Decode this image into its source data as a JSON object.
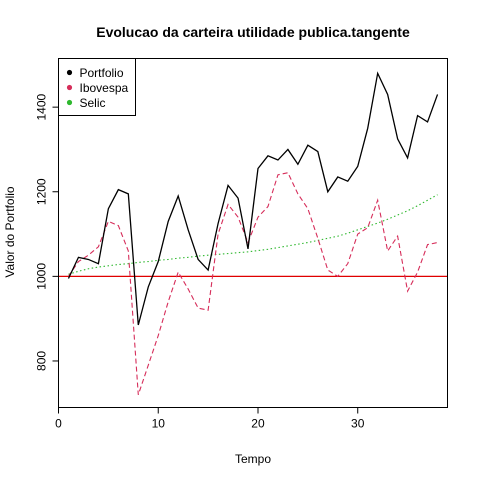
{
  "chart_data": {
    "type": "line",
    "title": "Evolucao da carteira utilidade publica.tangente",
    "xlabel": "Tempo",
    "ylabel": "Valor do Portfolio",
    "xlim": [
      0,
      39
    ],
    "ylim": [
      690,
      1515
    ],
    "xticks": [
      0,
      10,
      20,
      30
    ],
    "yticks": [
      800,
      1000,
      1200,
      1400
    ],
    "legend_position": "top-left",
    "reference_line": {
      "y": 1000,
      "color": "#e00000"
    },
    "x": [
      1,
      2,
      3,
      4,
      5,
      6,
      7,
      8,
      9,
      10,
      11,
      12,
      13,
      14,
      15,
      16,
      17,
      18,
      19,
      20,
      21,
      22,
      23,
      24,
      25,
      26,
      27,
      28,
      29,
      30,
      31,
      32,
      33,
      34,
      35,
      36,
      37,
      38
    ],
    "series": [
      {
        "name": "Portfolio",
        "color": "#000000",
        "style": "solid",
        "values": [
          995,
          1045,
          1040,
          1030,
          1160,
          1205,
          1195,
          885,
          975,
          1035,
          1130,
          1190,
          1110,
          1040,
          1015,
          1125,
          1215,
          1185,
          1065,
          1255,
          1285,
          1275,
          1300,
          1265,
          1310,
          1295,
          1200,
          1235,
          1225,
          1260,
          1350,
          1480,
          1430,
          1325,
          1280,
          1380,
          1365,
          1430
        ]
      },
      {
        "name": "Ibovespa",
        "color": "#d62d5a",
        "style": "dashed",
        "values": [
          1000,
          1035,
          1050,
          1070,
          1130,
          1120,
          1060,
          720,
          790,
          860,
          940,
          1010,
          970,
          925,
          920,
          1100,
          1170,
          1140,
          1080,
          1140,
          1165,
          1240,
          1245,
          1195,
          1160,
          1090,
          1015,
          1000,
          1030,
          1100,
          1115,
          1180,
          1060,
          1095,
          965,
          1010,
          1075,
          1080
        ]
      },
      {
        "name": "Selic",
        "color": "#2eb82e",
        "style": "dotted",
        "values": [
          1005,
          1012,
          1018,
          1022,
          1025,
          1028,
          1030,
          1033,
          1035,
          1038,
          1040,
          1043,
          1045,
          1048,
          1050,
          1052,
          1054,
          1056,
          1058,
          1061,
          1064,
          1068,
          1072,
          1076,
          1080,
          1085,
          1090,
          1095,
          1102,
          1110,
          1118,
          1126,
          1135,
          1145,
          1155,
          1167,
          1180,
          1193
        ]
      }
    ]
  }
}
